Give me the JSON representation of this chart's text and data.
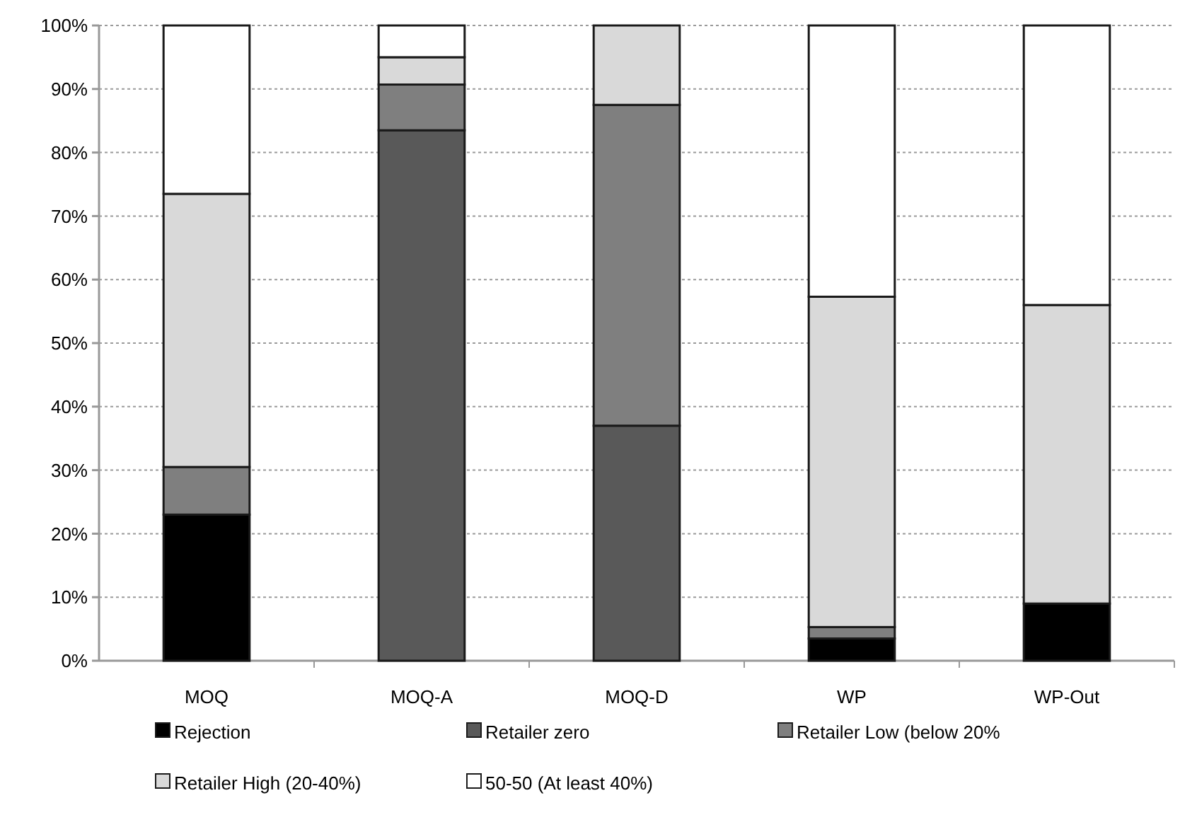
{
  "chart_data": {
    "type": "bar",
    "stacked": true,
    "categories": [
      "MOQ",
      "MOQ-A",
      "MOQ-D",
      "WP",
      "WP-Out"
    ],
    "series": [
      {
        "name": "Rejection",
        "color": "#000000",
        "values": [
          23,
          0,
          0,
          3.5,
          9
        ]
      },
      {
        "name": "Retailer zero",
        "color": "#595959",
        "values": [
          0,
          83.5,
          37,
          0,
          0
        ]
      },
      {
        "name": "Retailer Low (below 20%",
        "color": "#7f7f7f",
        "values": [
          7.5,
          7.2,
          50.5,
          1.8,
          0
        ]
      },
      {
        "name": "Retailer High (20-40%)",
        "color": "#d9d9d9",
        "values": [
          43,
          4.3,
          12.5,
          52,
          47
        ]
      },
      {
        "name": "50-50 (At least 40%)",
        "color": "#ffffff",
        "values": [
          26.5,
          5,
          0,
          42.7,
          44
        ]
      }
    ],
    "ylim": [
      0,
      100
    ],
    "yticks": [
      {
        "value": 0,
        "label": "0%"
      },
      {
        "value": 10,
        "label": "10%"
      },
      {
        "value": 20,
        "label": "20%"
      },
      {
        "value": 30,
        "label": "30%"
      },
      {
        "value": 40,
        "label": "40%"
      },
      {
        "value": 50,
        "label": "50%"
      },
      {
        "value": 60,
        "label": "60%"
      },
      {
        "value": 70,
        "label": "70%"
      },
      {
        "value": 80,
        "label": "80%"
      },
      {
        "value": 90,
        "label": "90%"
      },
      {
        "value": 100,
        "label": "100%"
      }
    ],
    "grid": "y",
    "legend": "bottom"
  }
}
